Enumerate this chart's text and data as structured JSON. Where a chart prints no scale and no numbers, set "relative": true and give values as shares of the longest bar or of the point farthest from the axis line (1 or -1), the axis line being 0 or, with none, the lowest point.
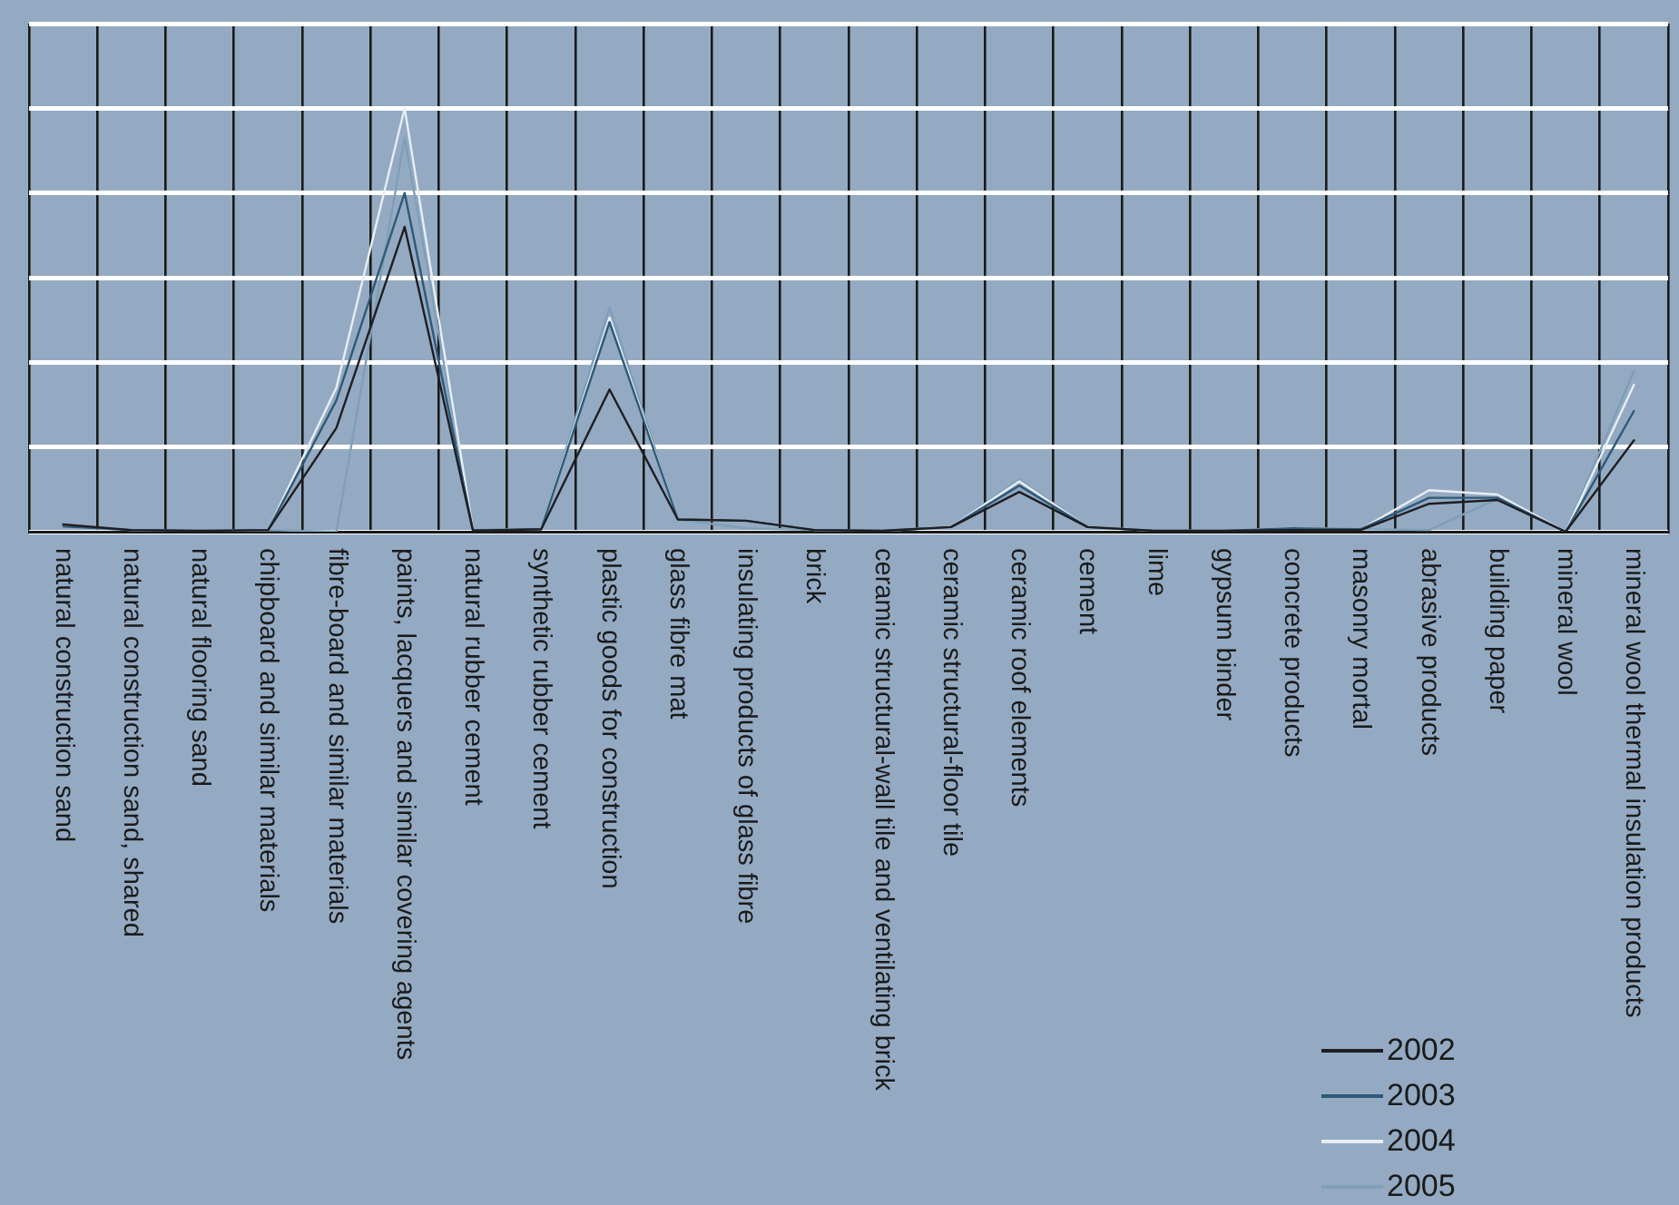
{
  "chart_data": {
    "type": "line",
    "relative": true,
    "grid": true,
    "legend": "bottom right",
    "marker": "none",
    "line_style": "solid",
    "categories": [
      "natural construction sand",
      "natural construction sand, shared",
      "natural flooring sand",
      "chipboard and similar materials",
      "fibre-board and similar materials",
      "paints, lacquers and similar covering agents",
      "natural rubber cement",
      "synthetic rubber cement",
      "plastic goods for construction",
      "glass fibre mat",
      "insulating products of glass fibre",
      "brick",
      "ceramic structural-wall tile and ventilating brick",
      "ceramic structural-floor tile",
      "ceramic roof elements",
      "cement",
      "lime",
      "gypsum binder",
      "concrete products",
      "masonry mortal",
      "abrasive products",
      "building paper",
      "mineral wool",
      "mineral wool thermal insulation products"
    ],
    "series": [
      {
        "name": "2002",
        "color": "#1e1e22",
        "values": [
          0.017,
          0.004,
          0.002,
          0.004,
          0.245,
          0.72,
          0.002,
          0.006,
          0.336,
          0.029,
          0.026,
          0.004,
          0.002,
          0.011,
          0.094,
          0.011,
          0.002,
          0.002,
          0.004,
          0.004,
          0.066,
          0.075,
          0,
          0.216
        ]
      },
      {
        "name": "2003",
        "color": "#2e5a78",
        "values": [
          0.012,
          0.004,
          0.002,
          0.004,
          0.31,
          0.8,
          0.004,
          0.006,
          0.495,
          0.029,
          0.026,
          0.004,
          0.002,
          0.011,
          0.109,
          0.011,
          0.002,
          0.002,
          0.008,
          0.006,
          0.08,
          0.08,
          0,
          0.285
        ]
      },
      {
        "name": "2004",
        "color": "#e8eef4",
        "values": [
          0.012,
          0.004,
          0.002,
          0.004,
          0.34,
          1,
          0.004,
          0.006,
          0.506,
          0.029,
          0.026,
          0.004,
          0.002,
          0.011,
          0.119,
          0.011,
          0.002,
          0.002,
          0.008,
          0.006,
          0.098,
          0.088,
          0,
          0.347
        ]
      },
      {
        "name": "2005",
        "color": "#7f9fb8",
        "values": [
          0.012,
          0.004,
          0.002,
          0.004,
          0,
          0.93,
          0.004,
          0.006,
          0.53,
          0.029,
          0.008,
          0.004,
          0.002,
          0.011,
          0.123,
          0.011,
          0.002,
          0.002,
          0.008,
          0.006,
          0.004,
          0.078,
          0,
          0.38
        ]
      }
    ]
  }
}
